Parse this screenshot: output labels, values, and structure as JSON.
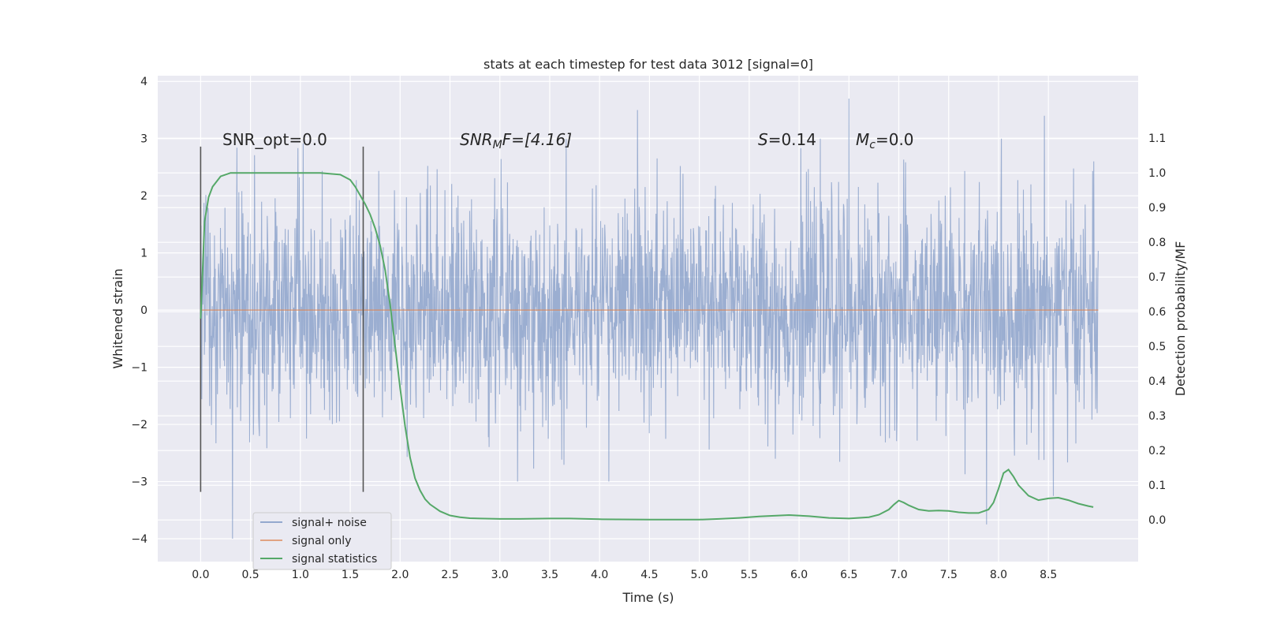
{
  "chart_data": {
    "type": "line",
    "title": "stats at each timestep for test data 3012 [signal=0]",
    "xlabel": "Time (s)",
    "ylabel": "Whitened strain",
    "y2label": "Detection probability/MF",
    "xlim": [
      -0.43,
      9.4
    ],
    "ylim": [
      -4.4,
      4.1
    ],
    "y2lim": [
      -0.12,
      1.28
    ],
    "xticks": [
      "0.0",
      "0.5",
      "1.0",
      "1.5",
      "2.0",
      "2.5",
      "3.0",
      "3.5",
      "4.0",
      "4.5",
      "5.0",
      "5.5",
      "6.0",
      "6.5",
      "7.0",
      "7.5",
      "8.0",
      "8.5"
    ],
    "yticks": [
      "4",
      "3",
      "2",
      "1",
      "0",
      "−1",
      "−2",
      "−3",
      "−4"
    ],
    "y2ticks": [
      "1.1",
      "1.0",
      "0.9",
      "0.8",
      "0.7",
      "0.6",
      "0.5",
      "0.4",
      "0.3",
      "0.2",
      "0.1",
      "0.0"
    ],
    "grid": true,
    "legend_position": "lower-left",
    "colors": {
      "noise": "#4c72b0",
      "signal": "#dd8452",
      "stats": "#55a868",
      "background": "#eaeaf2",
      "vline": "#555555"
    },
    "series": [
      {
        "name": "signal+ noise",
        "style": "dense noise trace, roughly Gaussian, amplitude mostly within ±2.5, extremes about ±4",
        "x_range": [
          0.0,
          9.0
        ],
        "notable_peaks": [
          [
            0.32,
            -4.0
          ],
          [
            4.38,
            3.5
          ],
          [
            6.5,
            3.7
          ],
          [
            7.88,
            -3.75
          ],
          [
            8.46,
            3.4
          ],
          [
            8.55,
            -3.25
          ]
        ]
      },
      {
        "name": "signal only",
        "x": [
          0.0,
          9.0
        ],
        "y": [
          0.0,
          0.0
        ]
      },
      {
        "name": "signal statistics",
        "x": [
          0.0,
          0.02,
          0.04,
          0.08,
          0.12,
          0.2,
          0.3,
          0.5,
          0.8,
          1.0,
          1.2,
          1.4,
          1.5,
          1.55,
          1.6,
          1.65,
          1.7,
          1.75,
          1.8,
          1.85,
          1.9,
          1.95,
          2.0,
          2.05,
          2.1,
          2.15,
          2.2,
          2.25,
          2.3,
          2.4,
          2.5,
          2.6,
          2.7,
          2.8,
          3.0,
          3.2,
          3.5,
          3.7,
          4.0,
          4.5,
          5.0,
          5.2,
          5.4,
          5.6,
          5.9,
          6.1,
          6.3,
          6.5,
          6.7,
          6.8,
          6.9,
          6.95,
          7.0,
          7.05,
          7.1,
          7.2,
          7.3,
          7.4,
          7.5,
          7.6,
          7.7,
          7.8,
          7.9,
          7.95,
          8.0,
          8.05,
          8.1,
          8.15,
          8.2,
          8.3,
          8.4,
          8.5,
          8.6,
          8.7,
          8.8,
          8.9,
          8.95
        ],
        "y": [
          0.58,
          0.72,
          0.86,
          0.93,
          0.96,
          0.99,
          1.0,
          1.0,
          1.0,
          1.0,
          1.0,
          0.995,
          0.98,
          0.96,
          0.935,
          0.91,
          0.88,
          0.84,
          0.79,
          0.72,
          0.62,
          0.5,
          0.38,
          0.27,
          0.18,
          0.12,
          0.085,
          0.06,
          0.045,
          0.025,
          0.013,
          0.008,
          0.005,
          0.004,
          0.003,
          0.003,
          0.004,
          0.004,
          0.002,
          0.001,
          0.001,
          0.003,
          0.006,
          0.01,
          0.014,
          0.011,
          0.006,
          0.004,
          0.008,
          0.015,
          0.03,
          0.044,
          0.056,
          0.05,
          0.042,
          0.03,
          0.026,
          0.027,
          0.026,
          0.022,
          0.02,
          0.02,
          0.03,
          0.05,
          0.09,
          0.135,
          0.145,
          0.125,
          0.1,
          0.07,
          0.057,
          0.062,
          0.064,
          0.057,
          0.047,
          0.04,
          0.037
        ]
      }
    ],
    "vlines": [
      0.0,
      1.63
    ],
    "annotations": {
      "snr_opt": "SNR_opt=0.0",
      "snr_mf_main": "SNR",
      "snr_mf_sub": "M",
      "snr_mf_rest": "F=[4.16]",
      "s_main": "S",
      "s_rest": "=0.14",
      "mc_main": "M",
      "mc_sub": "c",
      "mc_rest": "=0.0"
    }
  }
}
